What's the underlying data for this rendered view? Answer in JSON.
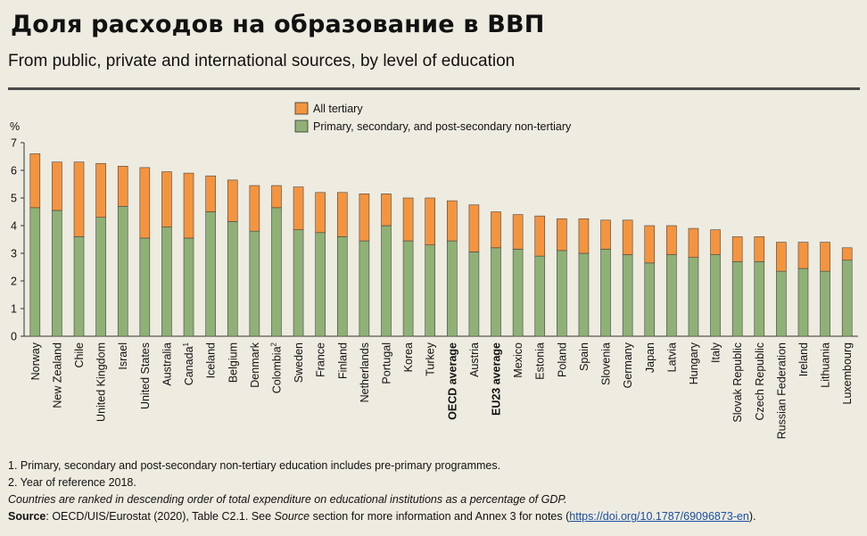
{
  "header": {
    "title": "Доля расходов на образование в ВВП",
    "subtitle": "From public, private and international sources, by level of education"
  },
  "chart_data": {
    "type": "bar",
    "stacked": true,
    "ylabel": "%",
    "ylim": [
      0,
      7
    ],
    "yticks": [
      0,
      1,
      2,
      3,
      4,
      5,
      6,
      7
    ],
    "legend": {
      "placement": "top-center"
    },
    "categories": [
      "Norway",
      "New Zealand",
      "Chile",
      "United Kingdom",
      "Israel",
      "United States",
      "Australia",
      "Canada",
      "Iceland",
      "Belgium",
      "Denmark",
      "Colombia",
      "Sweden",
      "France",
      "Finland",
      "Netherlands",
      "Portugal",
      "Korea",
      "Turkey",
      "OECD average",
      "Austria",
      "EU23 average",
      "Mexico",
      "Estonia",
      "Poland",
      "Spain",
      "Slovenia",
      "Germany",
      "Japan",
      "Latvia",
      "Hungary",
      "Italy",
      "Slovak Republic",
      "Czech Republic",
      "Russian Federation",
      "Ireland",
      "Lithuania",
      "Luxembourg"
    ],
    "category_notes": [
      "",
      "",
      "",
      "",
      "",
      "",
      "",
      "1",
      "",
      "",
      "",
      "2",
      "",
      "",
      "",
      "",
      "",
      "",
      "",
      "",
      "",
      "",
      "",
      "",
      "",
      "",
      "",
      "",
      "",
      "",
      "",
      "",
      "",
      "",
      "",
      "",
      "",
      ""
    ],
    "bold_categories": [
      "OECD average",
      "EU23 average"
    ],
    "series": [
      {
        "name": "Primary, secondary, and post-secondary non-tertiary",
        "color": "#8fb176",
        "values": [
          4.65,
          4.55,
          3.6,
          4.3,
          4.7,
          3.55,
          3.95,
          3.55,
          4.5,
          4.15,
          3.8,
          4.65,
          3.85,
          3.75,
          3.6,
          3.45,
          4.0,
          3.45,
          3.3,
          3.45,
          3.05,
          3.2,
          3.15,
          2.9,
          3.1,
          3.0,
          3.15,
          2.95,
          2.65,
          2.95,
          2.85,
          2.95,
          2.7,
          2.7,
          2.35,
          2.45,
          2.35,
          2.75
        ]
      },
      {
        "name": "All tertiary",
        "color": "#f5943f",
        "values": [
          1.95,
          1.75,
          2.7,
          1.95,
          1.45,
          2.55,
          2.0,
          2.35,
          1.3,
          1.5,
          1.65,
          0.8,
          1.55,
          1.45,
          1.6,
          1.7,
          1.15,
          1.55,
          1.7,
          1.45,
          1.7,
          1.3,
          1.25,
          1.45,
          1.15,
          1.25,
          1.05,
          1.25,
          1.35,
          1.05,
          1.05,
          0.9,
          0.9,
          0.9,
          1.05,
          0.95,
          1.05,
          0.45
        ]
      }
    ]
  },
  "notes": {
    "note1": "1. Primary, secondary and post-secondary non-tertiary education includes pre-primary programmes.",
    "note2": "2. Year of reference 2018.",
    "ranking": "Countries are ranked in descending order of total expenditure on educational institutions as a percentage of GDP.",
    "source_label": "Source",
    "source_part1": ": OECD/UIS/Eurostat (2020), Table C2.1. See ",
    "source_italic": "Source",
    "source_part2": " section for more information and Annex 3 for notes (",
    "source_link": "https://doi.org/10.1787/69096873-en",
    "source_end": ")."
  }
}
